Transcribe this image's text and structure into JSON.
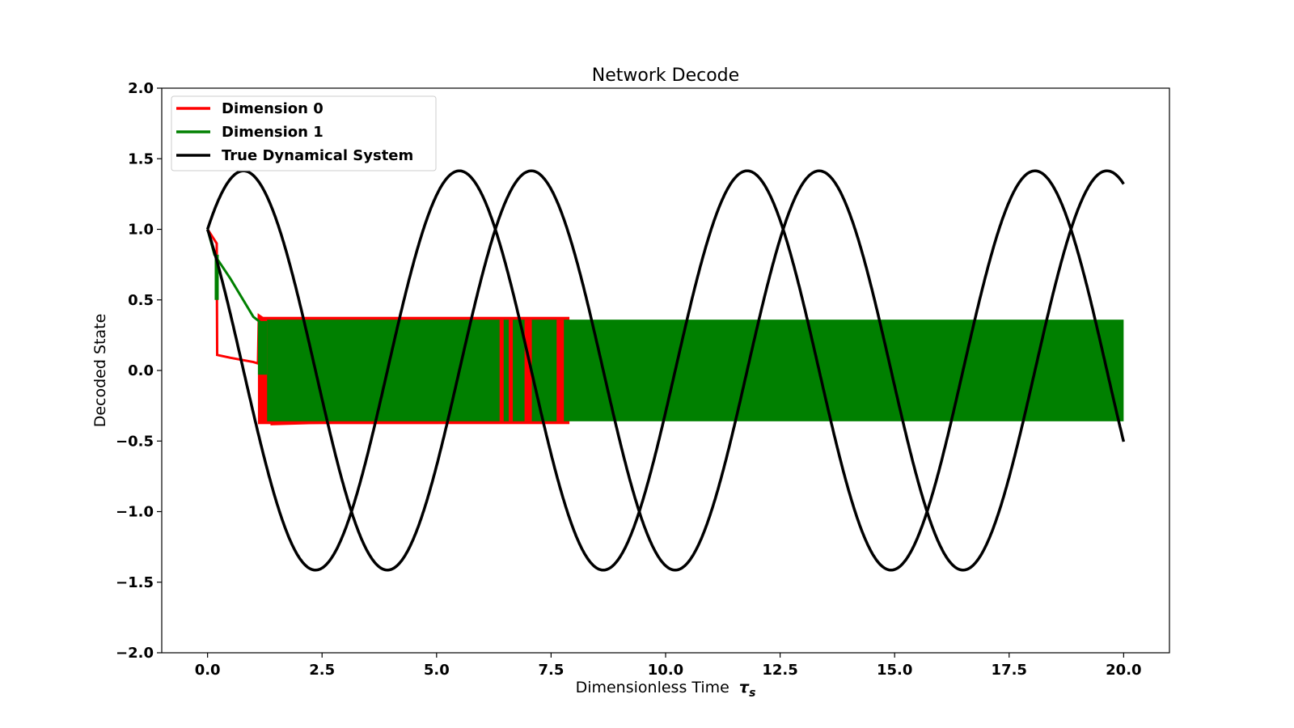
{
  "chart_data": {
    "type": "line",
    "title": "Network Decode",
    "xlabel": "Dimensionless Time",
    "xlabel_symbol": "τ",
    "xlabel_subscript": "s",
    "ylabel": "Decoded State",
    "xlim": [
      -1.0,
      21.0
    ],
    "ylim": [
      -2.0,
      2.0
    ],
    "xticks": [
      0.0,
      2.5,
      5.0,
      7.5,
      10.0,
      12.5,
      15.0,
      17.5,
      20.0
    ],
    "xtick_labels": [
      "0.0",
      "2.5",
      "5.0",
      "7.5",
      "10.0",
      "12.5",
      "15.0",
      "17.5",
      "20.0"
    ],
    "yticks": [
      2.0,
      1.5,
      1.0,
      0.5,
      0.0,
      -0.5,
      -1.0,
      -1.5,
      -2.0
    ],
    "ytick_labels": [
      "2.0",
      "1.5",
      "1.0",
      "0.5",
      "0.0",
      "−0.5",
      "−1.0",
      "−1.5",
      "−2.0"
    ],
    "grid": false,
    "legend_position": "top-left",
    "series": [
      {
        "name": "Dimension 0",
        "color": "#ff0000",
        "points": [
          [
            0.0,
            1.0
          ],
          [
            0.2,
            0.9
          ],
          [
            0.21,
            0.11
          ],
          [
            0.5,
            0.09
          ],
          [
            1.0,
            0.06
          ],
          [
            1.1,
            0.05
          ],
          [
            1.12,
            0.39
          ],
          [
            1.3,
            0.35
          ],
          [
            1.4,
            -0.38
          ],
          [
            2.5,
            -0.37
          ],
          [
            3.5,
            -0.37
          ],
          [
            5.0,
            -0.37
          ],
          [
            7.9,
            -0.36
          ]
        ],
        "band": {
          "x_start": 1.1,
          "x_end": 7.9,
          "y_low": -0.38,
          "y_high": 0.38
        },
        "visible_stripes_x": [
          6.42,
          6.62,
          7.0,
          7.7
        ]
      },
      {
        "name": "Dimension 1",
        "color": "#008000",
        "points": [
          [
            0.0,
            1.0
          ],
          [
            0.15,
            0.82
          ],
          [
            0.5,
            0.65
          ],
          [
            1.0,
            0.38
          ],
          [
            1.2,
            0.33
          ]
        ],
        "band": {
          "x_start": 1.1,
          "x_end": 20.0,
          "y_low": -0.36,
          "y_high": 0.36
        }
      },
      {
        "name": "True Dynamical System",
        "color": "#000000",
        "curves": [
          {
            "function": "sqrt(2)*sin(t*omega + pi/4)",
            "omega": 1.0,
            "t_range": [
              0.0,
              20.0
            ]
          },
          {
            "function": "sqrt(2)*cos(t*omega + pi/4)",
            "omega": 1.0,
            "t_range": [
              0.0,
              20.0
            ]
          }
        ]
      }
    ]
  }
}
